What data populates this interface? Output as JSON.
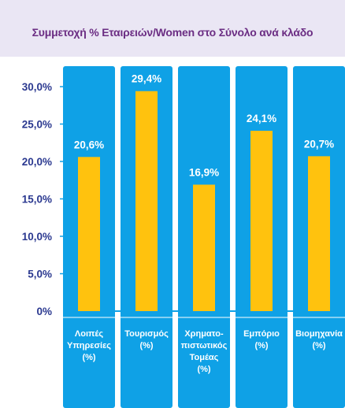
{
  "colors": {
    "background": "#eae6f4",
    "panel": "#ffffff",
    "title": "#6b2d83",
    "column_blue": "#0fa1e6",
    "bar_yellow": "#ffc20e",
    "axis_text": "#2b3990",
    "gridline": "#0fa1e6"
  },
  "chart_data": {
    "type": "bar",
    "title": "Συμμετοχή % Εταιρειών/Women στο Σύνολο ανά κλάδο",
    "categories": [
      [
        "Λοιπές",
        "Υπηρεσίες",
        "(%)"
      ],
      [
        "Τουρισμός",
        "(%)"
      ],
      [
        "Χρηματο-",
        "πιστωτικός",
        "Τομέας",
        "(%)"
      ],
      [
        "Εμπόριο",
        "(%)"
      ],
      [
        "Βιομηχανία",
        "(%)"
      ]
    ],
    "values": [
      20.6,
      29.4,
      16.9,
      24.1,
      20.7
    ],
    "data_labels": [
      "20,6%",
      "29,4%",
      "16,9%",
      "24,1%",
      "20,7%"
    ],
    "ylim": [
      0,
      30
    ],
    "yticks": [
      0,
      5,
      10,
      15,
      20,
      25,
      30
    ],
    "ytick_labels": [
      "0%",
      "5,0%",
      "10,0%",
      "15,0%",
      "20,0%",
      "25,0%",
      "30,0%"
    ],
    "xlabel": "",
    "ylabel": "",
    "grid": true
  }
}
